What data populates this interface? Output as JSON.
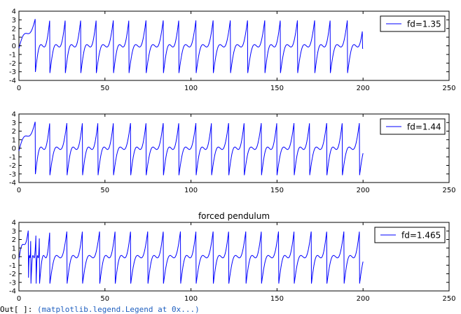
{
  "chart_data": [
    {
      "type": "line",
      "title": "",
      "xlabel": "",
      "ylabel": "",
      "xlim": [
        0,
        250
      ],
      "ylim": [
        -4,
        4
      ],
      "x_ticks": [
        0,
        50,
        100,
        150,
        200,
        250
      ],
      "y_ticks": [
        4,
        3,
        2,
        1,
        0,
        -1,
        -2,
        -3,
        -4
      ],
      "grid": false,
      "legend_position": "top-right",
      "line_color": "#0000ff",
      "series": [
        {
          "name": "fd=1.35",
          "x_range": [
            0,
            200
          ],
          "min": -3.14,
          "max": 3.14,
          "wrapped_peaks_x": [
            9.5,
            18,
            27,
            36,
            45,
            55,
            64,
            74,
            84,
            93,
            103,
            113,
            123,
            133,
            143,
            152,
            162,
            172,
            181,
            191
          ]
        }
      ]
    },
    {
      "type": "line",
      "title": "",
      "xlabel": "",
      "ylabel": "",
      "xlim": [
        0,
        250
      ],
      "ylim": [
        -4,
        4
      ],
      "x_ticks": [
        0,
        50,
        100,
        150,
        200,
        250
      ],
      "y_ticks": [
        4,
        3,
        2,
        1,
        0,
        -1,
        -2,
        -3,
        -4
      ],
      "grid": false,
      "legend_position": "top-right",
      "line_color": "#0000ff",
      "series": [
        {
          "name": "fd=1.44",
          "x_range": [
            0,
            200
          ],
          "min": -3.14,
          "max": 3.14,
          "wrapped_peaks_x": [
            9.5,
            18,
            28,
            37,
            46,
            55,
            65,
            74,
            84,
            93,
            103,
            112,
            122,
            131,
            141,
            150,
            160,
            169,
            179,
            188,
            198
          ]
        }
      ]
    },
    {
      "type": "line",
      "title": "forced pendulum",
      "xlabel": "",
      "ylabel": "",
      "xlim": [
        0,
        250
      ],
      "ylim": [
        -4,
        4
      ],
      "x_ticks": [
        0,
        50,
        100,
        150,
        200,
        250
      ],
      "y_ticks": [
        4,
        3,
        2,
        1,
        0,
        -1,
        -2,
        -3,
        -4
      ],
      "grid": false,
      "legend_position": "top-right",
      "line_color": "#0000ff",
      "series": [
        {
          "name": "fd=1.465",
          "x_range": [
            0,
            200
          ],
          "min": -3.14,
          "max": 3.14,
          "wrapped_peaks_x": [
            5.5,
            7,
            10,
            12,
            18,
            28,
            37,
            47,
            56,
            65,
            75,
            84,
            94,
            103,
            113,
            122,
            132,
            141,
            151,
            160,
            170,
            179,
            189,
            198
          ]
        }
      ]
    }
  ],
  "footer": {
    "prefix": "Out[  ]:",
    "code": "(matplotlib.legend.Legend at 0x...)"
  }
}
